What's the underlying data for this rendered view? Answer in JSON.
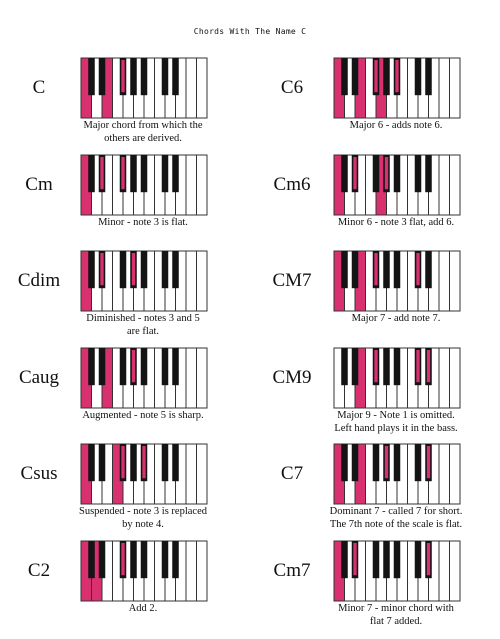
{
  "title": "Chords With The Name C",
  "colors": {
    "highlight": "#d9306f",
    "white_key": "#ffffff",
    "black_key": "#141414",
    "key_border": "#333333"
  },
  "keyboard": {
    "white_keys": 12
  },
  "chords": [
    {
      "name": "C",
      "description": "Major chord from which the\nothers are derived.",
      "white_highlights": [
        0,
        2
      ],
      "black_highlights": [
        2
      ]
    },
    {
      "name": "C6",
      "description": "Major 6 - adds note 6.",
      "white_highlights": [
        0,
        2,
        4
      ],
      "black_highlights": [
        2,
        4
      ]
    },
    {
      "name": "Cm",
      "description": "Minor - note 3 is flat.",
      "white_highlights": [
        0
      ],
      "black_highlights": [
        1,
        2
      ]
    },
    {
      "name": "Cm6",
      "description": "Minor 6 - note 3 flat, add 6.",
      "white_highlights": [
        0,
        4
      ],
      "black_highlights": [
        1,
        3
      ]
    },
    {
      "name": "Cdim",
      "description": "Diminished - notes 3 and 5\nare flat.",
      "white_highlights": [
        0
      ],
      "black_highlights": [
        1,
        3
      ]
    },
    {
      "name": "CM7",
      "description": "Major 7 - add note 7.",
      "white_highlights": [
        0,
        2
      ],
      "black_highlights": [
        2,
        5
      ]
    },
    {
      "name": "Caug",
      "description": "Augmented - note 5 is sharp.",
      "white_highlights": [
        0,
        2
      ],
      "black_highlights": [
        3
      ]
    },
    {
      "name": "CM9",
      "description": "Major 9 - Note 1 is omitted.\nLeft hand plays it in the bass.",
      "white_highlights": [
        2
      ],
      "black_highlights": [
        2,
        5,
        6
      ]
    },
    {
      "name": "Csus",
      "description": "Suspended - note 3 is replaced\nby note 4.",
      "white_highlights": [
        0,
        3
      ],
      "black_highlights": [
        2,
        4
      ]
    },
    {
      "name": "C7",
      "description": "Dominant 7 - called 7 for short.\nThe 7th note of the scale is flat.",
      "white_highlights": [
        0,
        2
      ],
      "black_highlights": [
        3,
        6
      ]
    },
    {
      "name": "C2",
      "description": "Add 2.",
      "white_highlights": [
        0,
        1
      ],
      "black_highlights": [
        2
      ]
    },
    {
      "name": "Cm7",
      "description": "Minor 7 - minor chord with\nflat 7 added.",
      "white_highlights": [
        0
      ],
      "black_highlights": [
        1,
        6
      ]
    }
  ]
}
